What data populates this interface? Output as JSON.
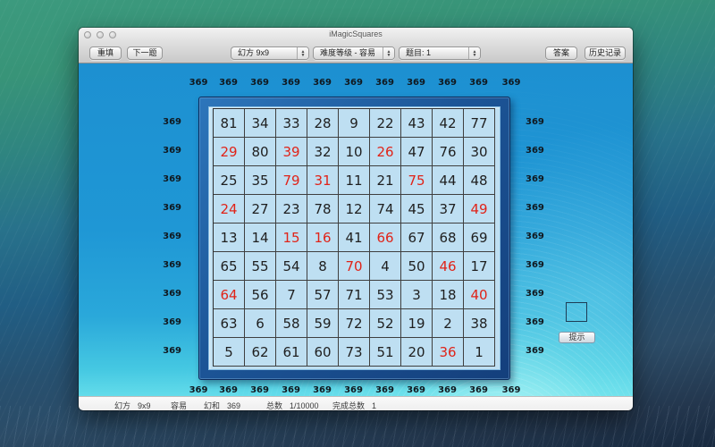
{
  "window": {
    "title": "iMagicSquares"
  },
  "toolbar": {
    "refill_label": "重填",
    "next_label": "下一题",
    "size_popup_value": "幻方 9x9",
    "difficulty_popup_value": "难度等级 - 容易",
    "problem_popup_value": "题目: 1",
    "answer_label": "答案",
    "history_label": "历史记录"
  },
  "puzzle": {
    "magic_sum": "369",
    "grid": [
      [
        81,
        34,
        33,
        28,
        9,
        22,
        43,
        42,
        77
      ],
      [
        29,
        80,
        39,
        32,
        10,
        26,
        47,
        76,
        30
      ],
      [
        25,
        35,
        79,
        31,
        11,
        21,
        75,
        44,
        48
      ],
      [
        24,
        27,
        23,
        78,
        12,
        74,
        45,
        37,
        49
      ],
      [
        13,
        14,
        15,
        16,
        41,
        66,
        67,
        68,
        69
      ],
      [
        65,
        55,
        54,
        8,
        70,
        4,
        50,
        46,
        17
      ],
      [
        64,
        56,
        7,
        57,
        71,
        53,
        3,
        18,
        40
      ],
      [
        63,
        6,
        58,
        59,
        72,
        52,
        19,
        2,
        38
      ],
      [
        5,
        62,
        61,
        60,
        73,
        51,
        20,
        36,
        1
      ]
    ],
    "red_cells": [
      [
        1,
        0
      ],
      [
        1,
        2
      ],
      [
        1,
        5
      ],
      [
        2,
        2
      ],
      [
        2,
        3
      ],
      [
        2,
        6
      ],
      [
        3,
        0
      ],
      [
        3,
        8
      ],
      [
        4,
        2
      ],
      [
        4,
        3
      ],
      [
        4,
        5
      ],
      [
        5,
        4
      ],
      [
        5,
        7
      ],
      [
        6,
        0
      ],
      [
        6,
        8
      ],
      [
        8,
        7
      ]
    ],
    "top_sums": [
      "369",
      "369",
      "369",
      "369",
      "369",
      "369",
      "369",
      "369",
      "369",
      "369",
      "369"
    ],
    "bottom_sums": [
      "369",
      "369",
      "369",
      "369",
      "369",
      "369",
      "369",
      "369",
      "369",
      "369",
      "369"
    ],
    "left_sums": [
      "369",
      "369",
      "369",
      "369",
      "369",
      "369",
      "369",
      "369",
      "369"
    ],
    "right_sums": [
      "369",
      "369",
      "369",
      "369",
      "369",
      "369",
      "369",
      "369",
      "369"
    ]
  },
  "hint": {
    "button_label": "提示"
  },
  "status": {
    "items": [
      {
        "label": "幻方",
        "value": "9x9"
      },
      {
        "label": "",
        "value": "容易"
      },
      {
        "label": "幻和",
        "value": "369"
      },
      {
        "label": "总数",
        "value": "1/10000"
      },
      {
        "label": "完成总数",
        "value": "1"
      }
    ]
  },
  "colors": {
    "content_bg": "#1f97d5",
    "board_frame": "#1c5597",
    "board_panel": "#bedff2",
    "number_default": "#1f1f1f",
    "number_highlight": "#e02318",
    "sum_label": "#10181f"
  }
}
